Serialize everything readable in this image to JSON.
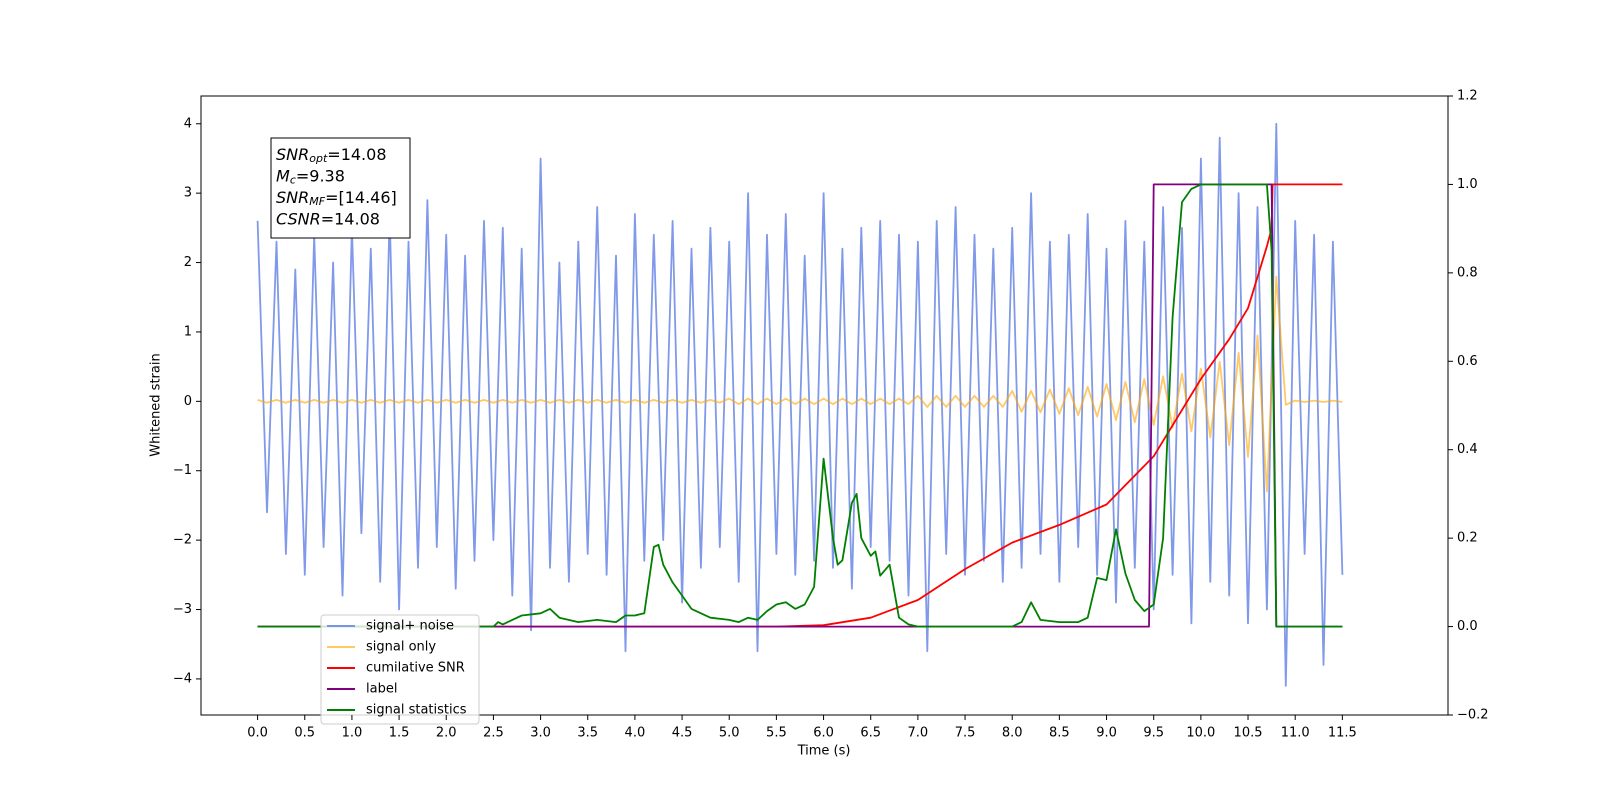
{
  "chart_data": {
    "type": "line",
    "x_label": "Time (s)",
    "y_label": "Whitened strain",
    "xlim": [
      -0.6,
      12.62
    ],
    "ylim": [
      -4.52,
      4.4
    ],
    "y2lim": [
      -0.2,
      1.2
    ],
    "xticks": [
      {
        "value": 0,
        "label": "0.0"
      },
      0.5,
      {
        "value": 1,
        "label": "1.0"
      },
      1.5,
      {
        "value": 2,
        "label": "2.0"
      },
      2.5,
      {
        "value": 3,
        "label": "3.0"
      },
      3.5,
      {
        "value": 4,
        "label": "4.0"
      },
      4.5,
      {
        "value": 5,
        "label": "5.0"
      },
      5.5,
      {
        "value": 6,
        "label": "6.0"
      },
      6.5,
      {
        "value": 7,
        "label": "7.0"
      },
      7.5,
      {
        "value": 8,
        "label": "8.0"
      },
      8.5,
      {
        "value": 9,
        "label": "9.0"
      },
      9.5,
      {
        "value": 10,
        "label": "10.0"
      },
      10.5,
      {
        "value": 11,
        "label": "11.0"
      },
      11.5
    ],
    "yticks": [
      {
        "value": -4,
        "label": "−4"
      },
      {
        "value": -3,
        "label": "−3"
      },
      {
        "value": -2,
        "label": "−2"
      },
      {
        "value": -1,
        "label": "−1"
      },
      0,
      1,
      2,
      3,
      4
    ],
    "y2ticks": [
      {
        "value": -0.2,
        "label": "−0.2"
      },
      {
        "value": 0,
        "label": "0.0"
      },
      0.2,
      0.4,
      0.6,
      0.8,
      {
        "value": 1,
        "label": "1.0"
      },
      1.2
    ],
    "legend": "lower left",
    "x": [
      0,
      0.1,
      0.2,
      0.3,
      0.4,
      0.5,
      0.6,
      0.7,
      0.8,
      0.9,
      1,
      1.1,
      1.2,
      1.3,
      1.4,
      1.5,
      1.6,
      1.7,
      1.8,
      1.9,
      2,
      2.1,
      2.2,
      2.3,
      2.4,
      2.5,
      2.6,
      2.7,
      2.8,
      2.9,
      3,
      3.1,
      3.2,
      3.3,
      3.4,
      3.5,
      3.6,
      3.7,
      3.8,
      3.9,
      4,
      4.1,
      4.2,
      4.3,
      4.4,
      4.5,
      4.6,
      4.7,
      4.8,
      4.9,
      5,
      5.1,
      5.2,
      5.3,
      5.4,
      5.5,
      5.6,
      5.7,
      5.8,
      5.9,
      6,
      6.1,
      6.2,
      6.3,
      6.4,
      6.5,
      6.6,
      6.7,
      6.8,
      6.9,
      7,
      7.1,
      7.2,
      7.3,
      7.4,
      7.5,
      7.6,
      7.7,
      7.8,
      7.9,
      8,
      8.1,
      8.2,
      8.3,
      8.4,
      8.5,
      8.6,
      8.7,
      8.8,
      8.9,
      9,
      9.1,
      9.2,
      9.3,
      9.4,
      9.5,
      9.6,
      9.7,
      9.8,
      9.9,
      10,
      10.1,
      10.2,
      10.3,
      10.4,
      10.5,
      10.6,
      10.7,
      10.8,
      10.9,
      11,
      11.1,
      11.2,
      11.3,
      11.4,
      11.5
    ],
    "annotations": [
      {
        "text": "SNR",
        "sub": "opt",
        "value": "=14.08"
      },
      {
        "text": "M",
        "sub": "c",
        "value": "=9.38"
      },
      {
        "text": "SNR",
        "sub": "MF",
        "value": "=[14.46]"
      },
      {
        "text": "CSNR",
        "value": "=14.08"
      }
    ],
    "series": [
      {
        "name": "signal+ noise",
        "color": "#7a93e8",
        "axis": "y",
        "values": [
          2.6,
          -1.6,
          2.3,
          -2.2,
          1.9,
          -2.5,
          2.4,
          -2.1,
          2.0,
          -2.8,
          2.5,
          -1.9,
          2.2,
          -2.6,
          2.7,
          -3.0,
          2.3,
          -2.4,
          2.9,
          -2.1,
          2.4,
          -2.7,
          2.1,
          -2.3,
          2.6,
          -2.0,
          2.5,
          -2.8,
          2.2,
          -3.3,
          3.5,
          -2.4,
          2.0,
          -2.6,
          2.3,
          -2.2,
          2.8,
          -2.5,
          2.1,
          -3.6,
          2.7,
          -2.3,
          2.4,
          -2.0,
          2.6,
          -2.9,
          2.2,
          -2.4,
          2.5,
          -2.1,
          2.3,
          -2.6,
          3.0,
          -3.6,
          2.4,
          -2.2,
          2.7,
          -2.5,
          2.1,
          -2.3,
          3.0,
          -2.4,
          2.2,
          -2.7,
          2.5,
          -2.1,
          2.6,
          -2.3,
          2.4,
          -2.8,
          2.3,
          -3.6,
          2.6,
          -2.2,
          2.8,
          -2.5,
          2.4,
          -2.3,
          2.2,
          -2.6,
          2.5,
          -2.4,
          3.0,
          -2.2,
          2.3,
          -2.6,
          2.4,
          -2.1,
          2.7,
          -2.5,
          2.2,
          -2.9,
          2.6,
          -2.4,
          2.3,
          -3.0,
          2.8,
          -2.5,
          2.5,
          -3.2,
          3.5,
          -2.6,
          3.8,
          -2.8,
          3.0,
          -3.2,
          2.8,
          -3.0,
          4.0,
          -4.1,
          2.6,
          -2.2,
          2.4,
          -3.8,
          2.3,
          -2.5
        ]
      },
      {
        "name": "signal only",
        "color": "#ffa500",
        "axis": "y",
        "values": [
          0.02,
          -0.02,
          0.02,
          -0.02,
          0.02,
          -0.02,
          0.02,
          -0.02,
          0.02,
          -0.02,
          0.02,
          -0.02,
          0.02,
          -0.02,
          0.02,
          -0.02,
          0.02,
          -0.02,
          0.02,
          -0.02,
          0.02,
          -0.02,
          0.02,
          -0.02,
          0.02,
          -0.02,
          0.02,
          -0.02,
          0.02,
          -0.02,
          0.02,
          -0.02,
          0.02,
          -0.02,
          0.02,
          -0.02,
          0.02,
          -0.02,
          0.02,
          -0.02,
          0.02,
          -0.02,
          0.02,
          -0.02,
          0.02,
          -0.02,
          0.02,
          -0.02,
          0.02,
          -0.02,
          0.04,
          -0.04,
          0.04,
          -0.04,
          0.04,
          -0.04,
          0.04,
          -0.04,
          0.04,
          -0.04,
          0.04,
          -0.04,
          0.04,
          -0.04,
          0.04,
          -0.04,
          0.04,
          -0.04,
          0.04,
          -0.04,
          0.08,
          -0.08,
          0.08,
          -0.08,
          0.08,
          -0.08,
          0.08,
          -0.08,
          0.08,
          -0.08,
          0.15,
          -0.15,
          0.15,
          -0.16,
          0.17,
          -0.18,
          0.19,
          -0.2,
          0.21,
          -0.22,
          0.25,
          -0.27,
          0.28,
          -0.3,
          0.32,
          -0.34,
          0.36,
          -0.38,
          0.4,
          -0.43,
          0.47,
          -0.52,
          0.57,
          -0.63,
          0.7,
          -0.8,
          0.95,
          -1.3,
          1.8,
          -0.05,
          0.01,
          -0.01,
          0.01,
          -0.01,
          0.01,
          -0.01
        ]
      },
      {
        "name": "cumilative SNR",
        "color": "#ff0000",
        "axis": "y2",
        "x": [
          0,
          5.5,
          6.0,
          6.5,
          7.0,
          7.5,
          8.0,
          8.5,
          9.0,
          9.5,
          10.0,
          10.3,
          10.5,
          10.7,
          10.75,
          10.76,
          11.5
        ],
        "values": [
          0,
          0,
          0.003,
          0.02,
          0.06,
          0.13,
          0.19,
          0.23,
          0.276,
          0.385,
          0.56,
          0.65,
          0.72,
          0.86,
          0.9,
          1,
          1
        ]
      },
      {
        "name": "label",
        "color": "#800080",
        "axis": "y2",
        "x": [
          0,
          9.45,
          9.5,
          10.75,
          10.8,
          11.5
        ],
        "values": [
          0,
          0,
          1,
          1,
          0,
          0
        ]
      },
      {
        "name": "signal statistics",
        "color": "#008000",
        "axis": "y2",
        "x": [
          0,
          2.5,
          2.55,
          2.6,
          2.7,
          2.8,
          3.0,
          3.1,
          3.2,
          3.4,
          3.6,
          3.8,
          3.9,
          4.0,
          4.1,
          4.2,
          4.25,
          4.3,
          4.4,
          4.5,
          4.6,
          4.8,
          5.0,
          5.1,
          5.2,
          5.3,
          5.4,
          5.5,
          5.6,
          5.7,
          5.8,
          5.9,
          6.0,
          6.1,
          6.15,
          6.2,
          6.3,
          6.35,
          6.4,
          6.5,
          6.55,
          6.6,
          6.7,
          6.8,
          6.9,
          7.0,
          8.0,
          8.1,
          8.2,
          8.3,
          8.5,
          8.7,
          8.8,
          8.9,
          9.0,
          9.1,
          9.2,
          9.3,
          9.4,
          9.5,
          9.6,
          9.7,
          9.8,
          9.9,
          10.0,
          10.7,
          10.75,
          10.8,
          11.5
        ],
        "values": [
          0,
          0,
          0.01,
          0.005,
          0.015,
          0.025,
          0.03,
          0.04,
          0.02,
          0.01,
          0.015,
          0.01,
          0.025,
          0.025,
          0.03,
          0.18,
          0.185,
          0.14,
          0.1,
          0.07,
          0.04,
          0.02,
          0.015,
          0.01,
          0.02,
          0.015,
          0.035,
          0.05,
          0.055,
          0.04,
          0.05,
          0.09,
          0.38,
          0.2,
          0.14,
          0.15,
          0.28,
          0.3,
          0.2,
          0.16,
          0.17,
          0.115,
          0.14,
          0.02,
          0.005,
          0,
          0,
          0.01,
          0.055,
          0.015,
          0.01,
          0.01,
          0.02,
          0.11,
          0.105,
          0.22,
          0.12,
          0.06,
          0.035,
          0.05,
          0.2,
          0.7,
          0.96,
          0.99,
          1,
          1,
          0.85,
          0,
          0
        ]
      }
    ]
  }
}
